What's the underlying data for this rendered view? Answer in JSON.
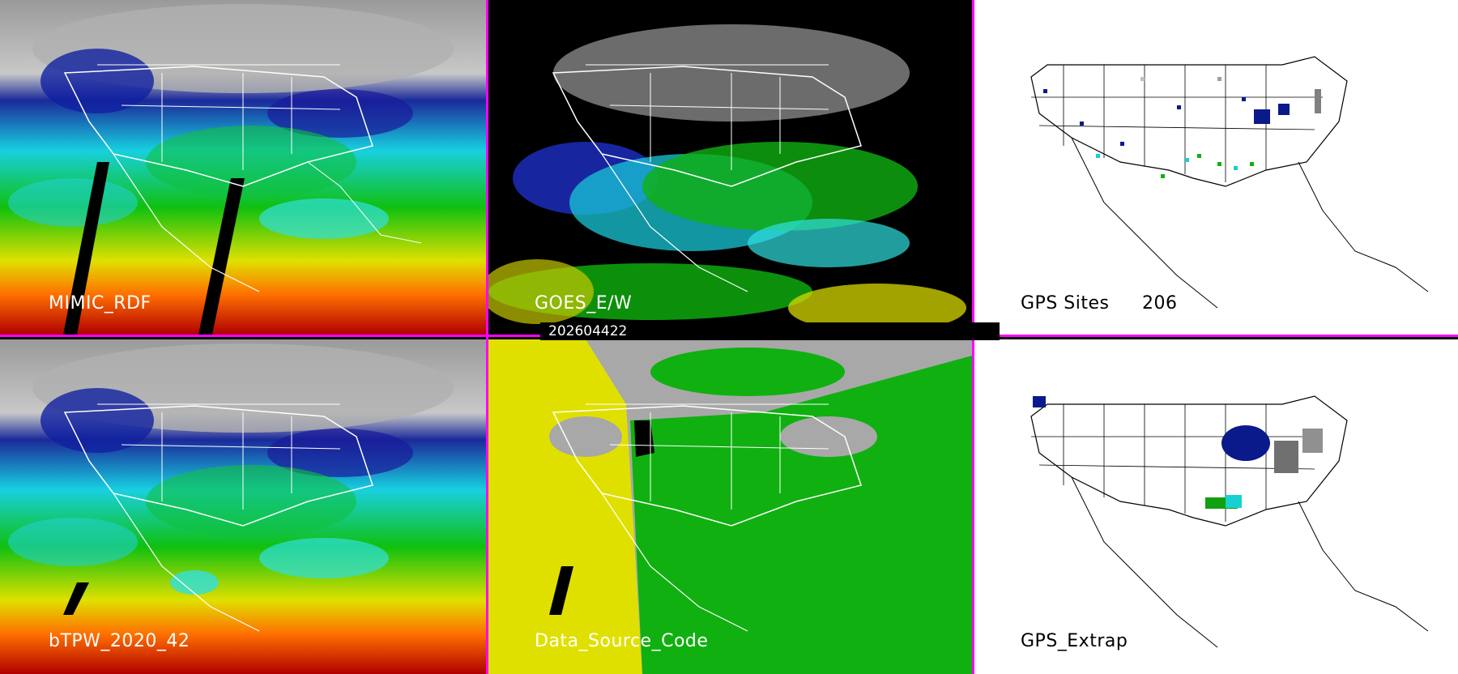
{
  "panels": {
    "p1": {
      "label": "MIMIC_RDF"
    },
    "p2": {
      "label": "GOES_E/W"
    },
    "p3": {
      "label": "GPS Sites",
      "count": "206"
    },
    "p4": {
      "label": "bTPW_2020_42"
    },
    "p5": {
      "label": "Data_Source_Code"
    },
    "p6": {
      "label": "GPS_Extrap"
    }
  },
  "timestamp": "202604422",
  "colors": {
    "divider": "#ff00ff",
    "tpw_scale": [
      "#8a8a8a",
      "#0a1a8a",
      "#2040d0",
      "#18e0e0",
      "#10c010",
      "#e0e000",
      "#ff8000",
      "#c00000"
    ],
    "source_gps": "#10b010",
    "source_goes": "#e0e000",
    "source_mimic": "#a8a8a8"
  }
}
